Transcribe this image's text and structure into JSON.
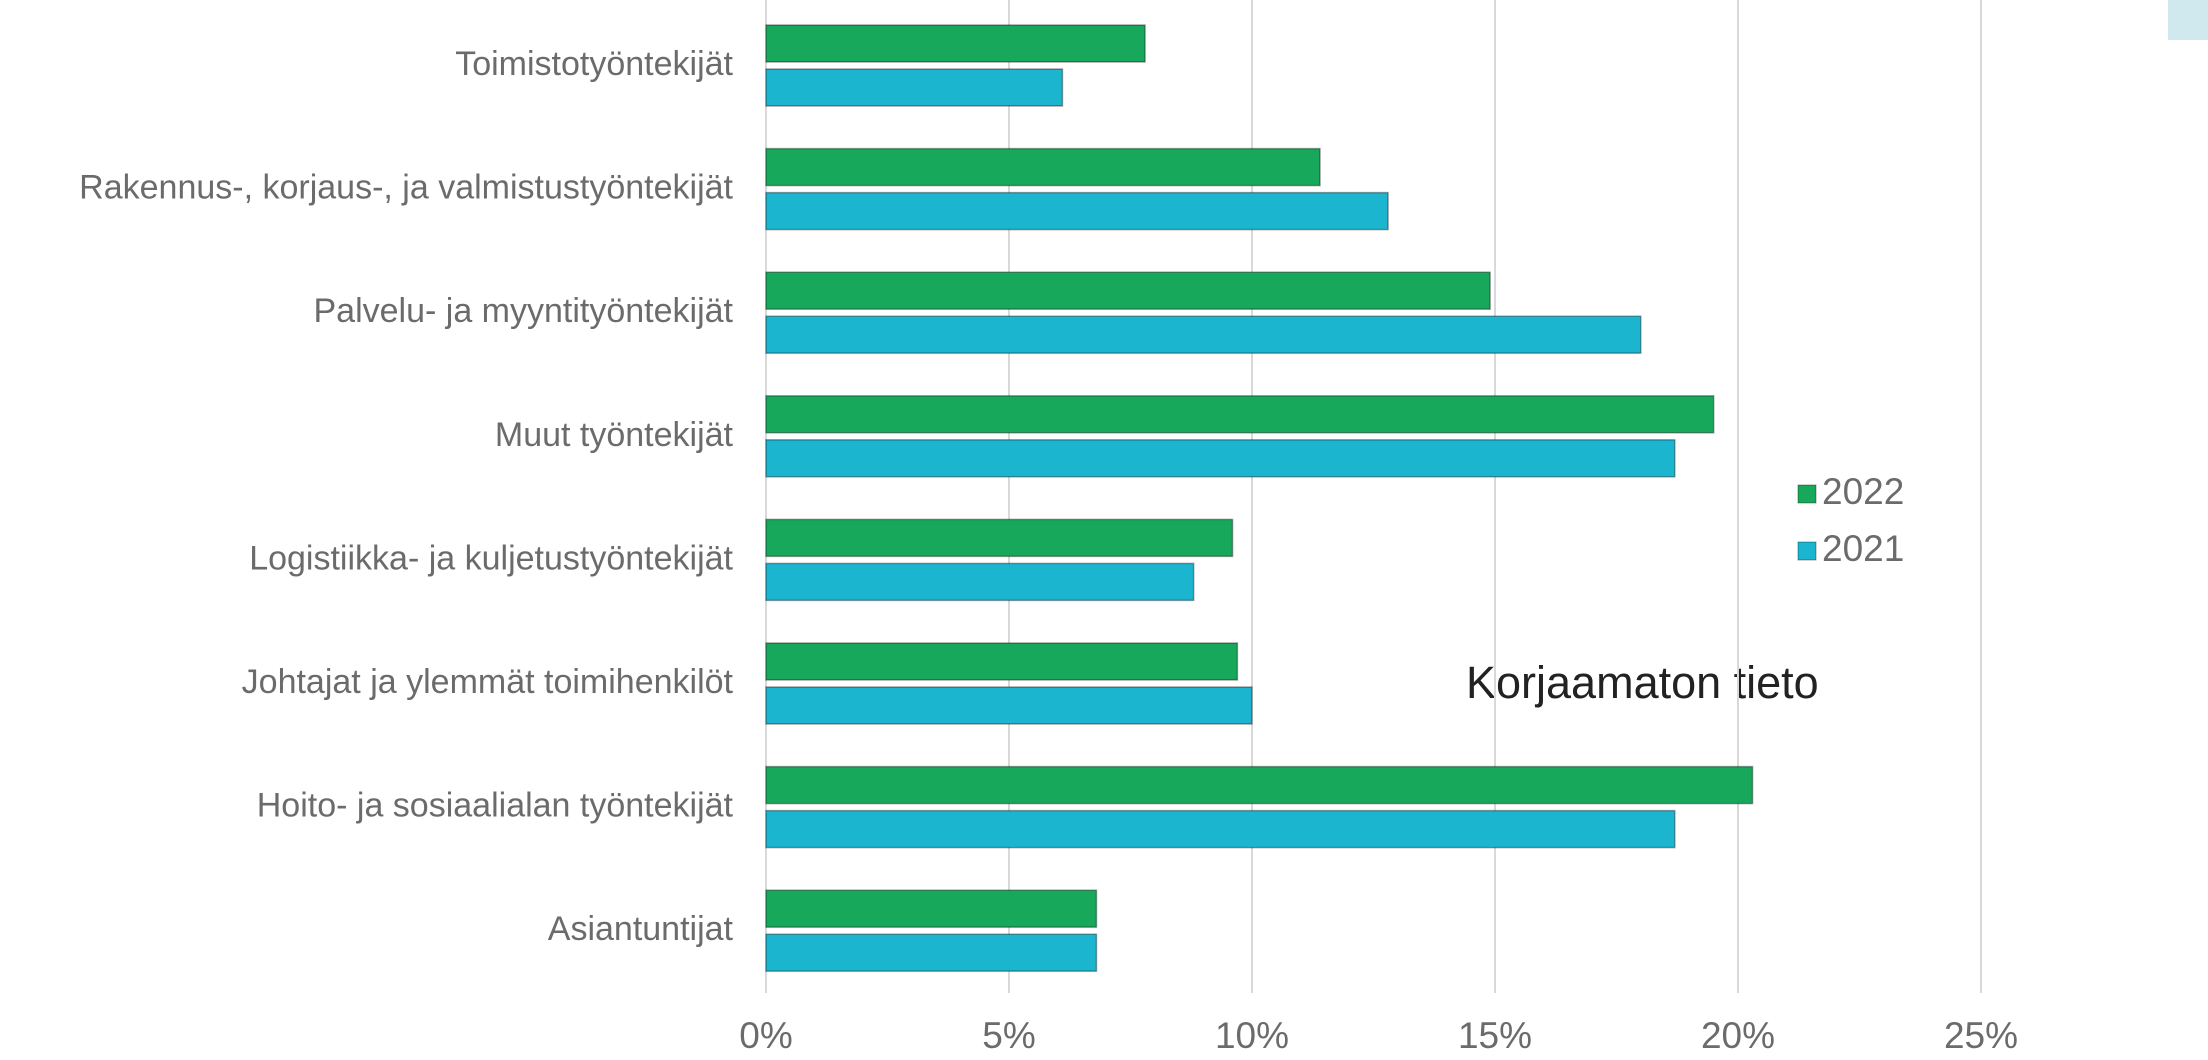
{
  "chart_data": {
    "type": "bar",
    "orientation": "horizontal",
    "annotation": "Korjaamaton tieto",
    "categories": [
      "Toimistotyöntekijät",
      "Rakennus-, korjaus-, ja valmistustyöntekijät",
      "Palvelu- ja myyntityöntekijät",
      "Muut työntekijät",
      "Logistiikka- ja kuljetustyöntekijät",
      "Johtajat ja ylemmät toimihenkilöt",
      "Hoito- ja sosiaalialan työntekijät",
      "Asiantuntijat"
    ],
    "series": [
      {
        "name": "2022",
        "color": "#18a85c",
        "values": [
          7.8,
          11.4,
          14.9,
          19.5,
          9.6,
          9.7,
          20.3,
          6.8
        ]
      },
      {
        "name": "2021",
        "color": "#1bb5cf",
        "values": [
          6.1,
          12.8,
          18.0,
          18.7,
          8.8,
          10.0,
          18.7,
          6.8
        ]
      }
    ],
    "xlim": [
      0,
      25
    ],
    "xticks": [
      {
        "value": 0,
        "label": "0%"
      },
      {
        "value": 5,
        "label": "5%"
      },
      {
        "value": 10,
        "label": "10%"
      },
      {
        "value": 15,
        "label": "15%"
      },
      {
        "value": 20,
        "label": "20%"
      },
      {
        "value": 25,
        "label": "25%"
      }
    ],
    "grid": true,
    "legend": "right"
  }
}
